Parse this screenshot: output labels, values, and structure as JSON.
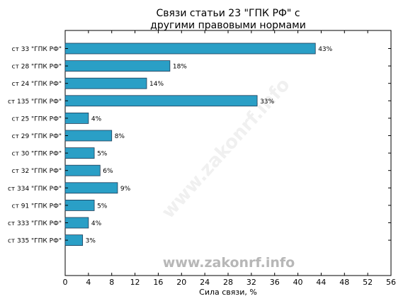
{
  "chart_data": {
    "type": "bar",
    "orientation": "horizontal",
    "title_line1": "Связи статьи 23 \"ГПК РФ\" с",
    "title_line2": "другими правовыми нормами",
    "xlabel": "Сила связи, %",
    "xlim": [
      0,
      56
    ],
    "xticks": [
      0,
      4,
      8,
      12,
      16,
      20,
      24,
      28,
      32,
      36,
      40,
      44,
      48,
      52,
      56
    ],
    "categories": [
      "ст 33 \"ГПК РФ\"",
      "ст 28 \"ГПК РФ\"",
      "ст 24 \"ГПК РФ\"",
      "ст 135 \"ГПК РФ\"",
      "ст 25 \"ГПК РФ\"",
      "ст 29 \"ГПК РФ\"",
      "ст 30 \"ГПК РФ\"",
      "ст 32 \"ГПК РФ\"",
      "ст 334 \"ГПК РФ\"",
      "ст 91 \"ГПК РФ\"",
      "ст 333 \"ГПК РФ\"",
      "ст 335 \"ГПК РФ\""
    ],
    "values": [
      43,
      18,
      14,
      33,
      4,
      8,
      5,
      6,
      9,
      5,
      4,
      3
    ],
    "value_labels": [
      "43%",
      "18%",
      "14%",
      "33%",
      "4%",
      "8%",
      "5%",
      "6%",
      "9%",
      "5%",
      "4%",
      "3%"
    ],
    "bar_color": "#2a9fc6",
    "bar_edge_color": "#1e3a55",
    "grid": false,
    "legend": "none"
  },
  "watermark": {
    "main": "www.zakonrf.info",
    "diagonal": "www.zakonrf.info"
  }
}
